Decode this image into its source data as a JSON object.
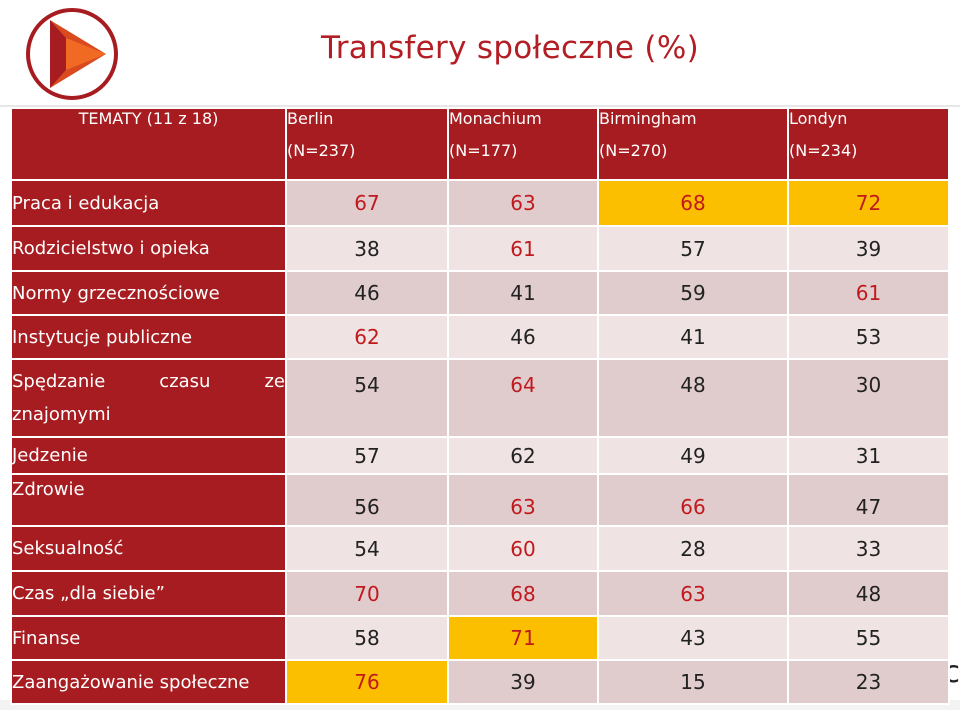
{
  "slide": {
    "title": "Transfery społeczne (%)",
    "colors": {
      "header_bg": "#a71c20",
      "title": "#b31e24",
      "highlight": "#fcbf00",
      "row_odd": "#e1cccd",
      "row_even": "#efe3e3"
    },
    "logo_icon": "play-triangle-logo-icon"
  },
  "table": {
    "header": {
      "topic_label": "TEMATY (11 z 18)",
      "cities": [
        {
          "name": "Berlin",
          "n": "(N=237)"
        },
        {
          "name": "Monachium",
          "n": "(N=177)"
        },
        {
          "name": "Birmingham",
          "n": "(N=270)"
        },
        {
          "name": "Londyn",
          "n": "(N=234)"
        }
      ]
    },
    "rows": [
      {
        "label": "Praca i edukacja",
        "values": [
          "67",
          "63",
          "68",
          "72"
        ]
      },
      {
        "label": "Rodzicielstwo i opieka",
        "values": [
          "38",
          "61",
          "57",
          "39"
        ]
      },
      {
        "label": "Normy grzecznościowe",
        "values": [
          "46",
          "41",
          "59",
          "61"
        ]
      },
      {
        "label": "Instytucje publiczne",
        "values": [
          "62",
          "46",
          "41",
          "53"
        ]
      },
      {
        "label": "Spędzanie czasu ze",
        "label_line2": "znajomymi",
        "values": [
          "54",
          "64",
          "48",
          "30"
        ]
      },
      {
        "label": "Jedzenie",
        "values": [
          "57",
          "62",
          "49",
          "31"
        ]
      },
      {
        "label": "Zdrowie",
        "values": [
          "56",
          "63",
          "66",
          "47"
        ]
      },
      {
        "label": "Seksualność",
        "values": [
          "54",
          "60",
          "28",
          "33"
        ]
      },
      {
        "label": "Czas „dla siebie”",
        "values": [
          "70",
          "68",
          "63",
          "48"
        ]
      },
      {
        "label": "Finanse",
        "values": [
          "58",
          "71",
          "43",
          "55"
        ]
      },
      {
        "label": "Zaangażowanie społeczne",
        "values": [
          "76",
          "39",
          "15",
          "23"
        ]
      }
    ]
  },
  "corner_text": "c"
}
